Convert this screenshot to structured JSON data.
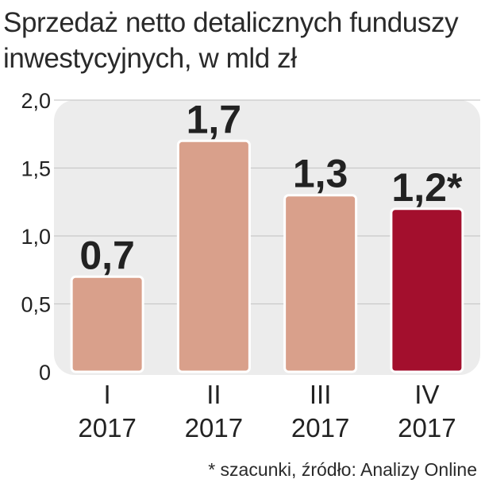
{
  "chart_data": {
    "type": "bar",
    "title": "Sprzedaż netto detalicznych funduszy inwestycyjnych, w mld zł",
    "title_lines": [
      "Sprzedaż netto detalicznych funduszy",
      "inwestycyjnych, w mld zł"
    ],
    "categories": [
      [
        "I",
        "2017"
      ],
      [
        "II",
        "2017"
      ],
      [
        "III",
        "2017"
      ],
      [
        "IV",
        "2017"
      ]
    ],
    "values": [
      0.7,
      1.7,
      1.3,
      1.2
    ],
    "value_labels": [
      "0,7",
      "1,7",
      "1,3",
      "1,2*"
    ],
    "highlighted_index": 3,
    "ylim": [
      0,
      2.0
    ],
    "yticks": [
      0,
      0.5,
      1.0,
      1.5,
      2.0
    ],
    "ytick_labels": [
      "0",
      "0,5",
      "1,0",
      "1,5",
      "2,0"
    ],
    "xlabel": "",
    "ylabel": "",
    "grid": true,
    "footnote": "* szacunki, źródło: Analizy Online",
    "colors": {
      "bar": "#d9a08b",
      "highlight": "#a30f2d",
      "panel": "#ececec",
      "grid": "#c9c9c9",
      "text": "#222222"
    }
  }
}
